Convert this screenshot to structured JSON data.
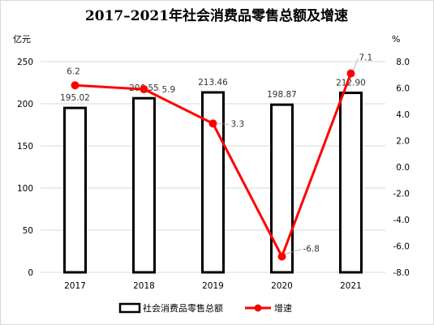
{
  "chart_data": {
    "type": "bar",
    "title": "2017–2021年社会消费品零售总额及增速",
    "categories": [
      "2017",
      "2018",
      "2019",
      "2020",
      "2021"
    ],
    "series": [
      {
        "name": "社会消费品零售总额",
        "type": "bar",
        "axis": "left",
        "values": [
          195.02,
          206.55,
          213.46,
          198.87,
          212.9
        ],
        "labels": [
          "195.02",
          "206.55",
          "213.46",
          "198.87",
          "212.90"
        ],
        "color": "#000000"
      },
      {
        "name": "增速",
        "type": "line",
        "axis": "right",
        "values": [
          6.2,
          5.9,
          3.3,
          -6.8,
          7.1
        ],
        "labels": [
          "6.2",
          "5.9",
          "3.3",
          "-6.8",
          "7.1"
        ],
        "color": "#ff0000"
      }
    ],
    "ylabel_left": "亿元",
    "ylabel_right": "%",
    "ylim_left": [
      0,
      250
    ],
    "ylim_right": [
      -8.0,
      8.0
    ],
    "yticks_left": [
      "0",
      "50",
      "100",
      "150",
      "200",
      "250"
    ],
    "yticks_right": [
      "-8.0",
      "-6.0",
      "-4.0",
      "-2.0",
      "0.0",
      "2.0",
      "4.0",
      "6.0",
      "8.0"
    ],
    "grid": true,
    "legend": "bottom"
  }
}
